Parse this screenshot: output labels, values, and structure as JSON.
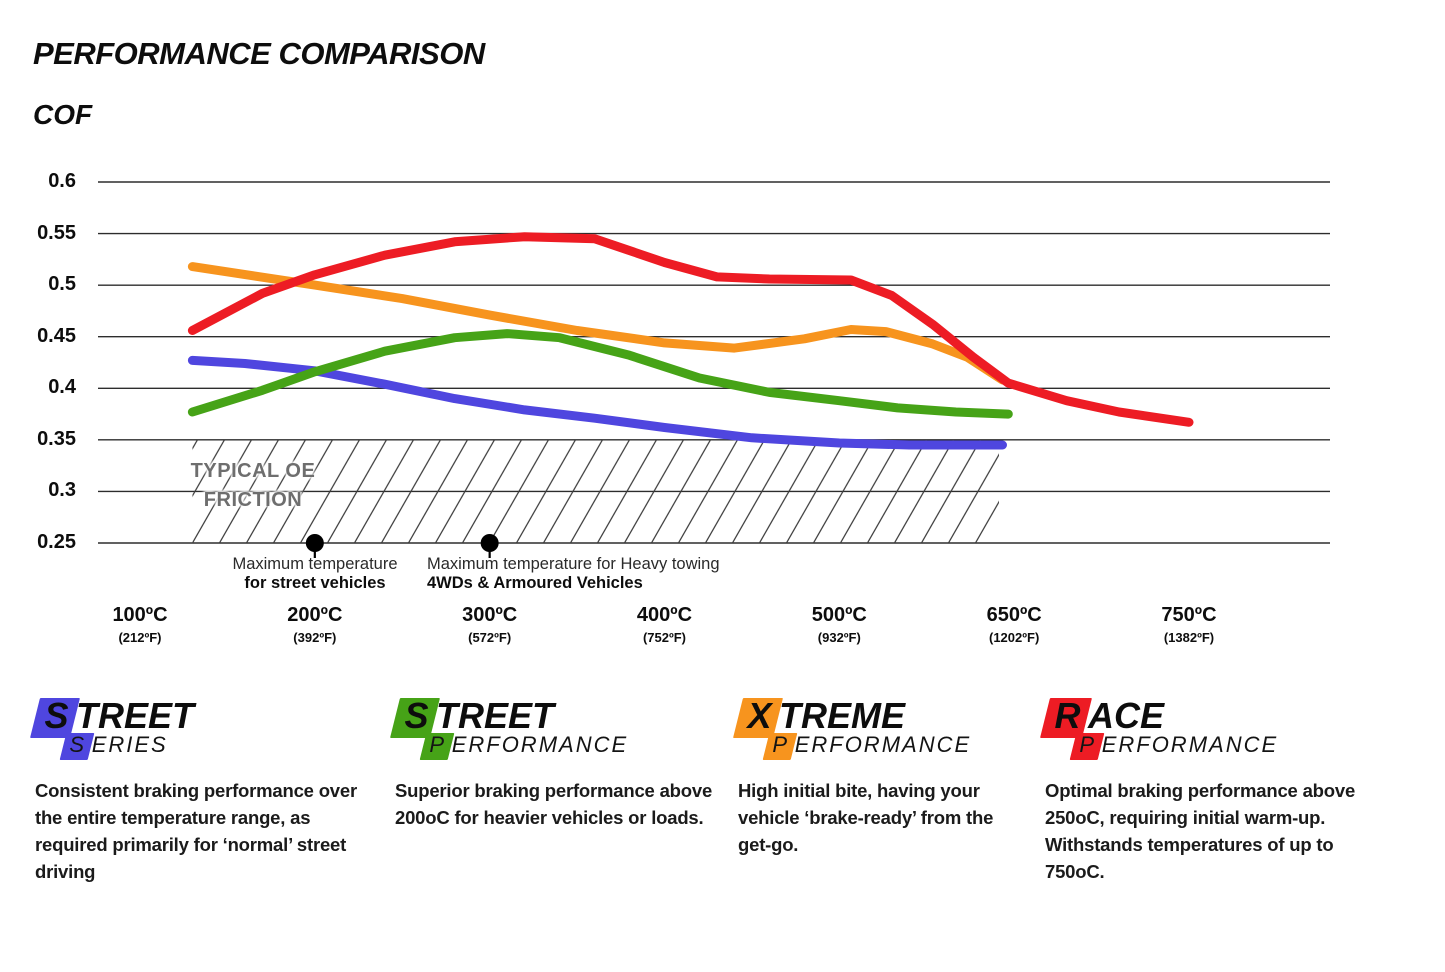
{
  "title": "PERFORMANCE COMPARISON",
  "y_axis_title": "COF",
  "colors": {
    "street_series_blue": "#4f46df",
    "street_performance_green": "#46a317",
    "xtreme_performance_orange": "#f7941e",
    "race_performance_red": "#ed1c24",
    "gridline": "#2d2d2d",
    "hatch_line": "#3b3b3b",
    "band_text": "#6e6e6e"
  },
  "chart_data": {
    "type": "line",
    "title": "PERFORMANCE COMPARISON",
    "ylabel": "COF",
    "ylim": [
      0.25,
      0.6
    ],
    "grid": "horizontal",
    "legend_position": "bottom",
    "y_ticks": [
      "0.6",
      "0.55",
      "0.5",
      "0.45",
      "0.4",
      "0.35",
      "0.3",
      "0.25"
    ],
    "x_ticks": [
      {
        "temp": 100,
        "label": "100ºC",
        "flabel": "(212ºF)"
      },
      {
        "temp": 200,
        "label": "200ºC",
        "flabel": "(392ºF)"
      },
      {
        "temp": 300,
        "label": "300ºC",
        "flabel": "(572ºF)"
      },
      {
        "temp": 400,
        "label": "400ºC",
        "flabel": "(752ºF)"
      },
      {
        "temp": 500,
        "label": "500ºC",
        "flabel": "(932ºF)"
      },
      {
        "temp": 650,
        "label": "650ºC",
        "flabel": "(1202ºF)"
      },
      {
        "temp": 750,
        "label": "750ºC",
        "flabel": "(1382ºF)"
      }
    ],
    "band": {
      "label_line1": "TYPICAL OE",
      "label_line2": "FRICTION",
      "cof_from": 0.25,
      "cof_to": 0.35,
      "temp_from": 130,
      "temp_to": 637
    },
    "annotations": [
      {
        "temp": 200,
        "cof": 0.25,
        "line1": "Maximum temperature",
        "line2": "for street vehicles"
      },
      {
        "temp": 300,
        "cof": 0.25,
        "line1": "Maximum temperature for Heavy towing",
        "line2": "4WDs & Armoured Vehicles"
      }
    ],
    "series": [
      {
        "name": "Street Series",
        "color": "#4f46df",
        "points": [
          [
            130,
            0.427
          ],
          [
            160,
            0.424
          ],
          [
            200,
            0.417
          ],
          [
            240,
            0.404
          ],
          [
            280,
            0.39
          ],
          [
            320,
            0.379
          ],
          [
            360,
            0.371
          ],
          [
            400,
            0.362
          ],
          [
            450,
            0.352
          ],
          [
            500,
            0.347
          ],
          [
            560,
            0.345
          ],
          [
            640,
            0.345
          ]
        ]
      },
      {
        "name": "Street Performance",
        "color": "#46a317",
        "points": [
          [
            130,
            0.377
          ],
          [
            170,
            0.398
          ],
          [
            200,
            0.416
          ],
          [
            240,
            0.436
          ],
          [
            280,
            0.449
          ],
          [
            310,
            0.453
          ],
          [
            340,
            0.449
          ],
          [
            380,
            0.432
          ],
          [
            420,
            0.41
          ],
          [
            460,
            0.396
          ],
          [
            500,
            0.388
          ],
          [
            550,
            0.381
          ],
          [
            600,
            0.377
          ],
          [
            645,
            0.375
          ]
        ]
      },
      {
        "name": "Xtreme Performance",
        "color": "#f7941e",
        "points": [
          [
            130,
            0.518
          ],
          [
            200,
            0.5
          ],
          [
            250,
            0.487
          ],
          [
            300,
            0.471
          ],
          [
            350,
            0.456
          ],
          [
            400,
            0.444
          ],
          [
            440,
            0.439
          ],
          [
            480,
            0.448
          ],
          [
            510,
            0.457
          ],
          [
            540,
            0.455
          ],
          [
            580,
            0.443
          ],
          [
            610,
            0.43
          ],
          [
            640,
            0.408
          ]
        ]
      },
      {
        "name": "Race Performance",
        "color": "#ed1c24",
        "points": [
          [
            130,
            0.456
          ],
          [
            170,
            0.492
          ],
          [
            200,
            0.51
          ],
          [
            240,
            0.529
          ],
          [
            280,
            0.542
          ],
          [
            320,
            0.547
          ],
          [
            360,
            0.545
          ],
          [
            400,
            0.522
          ],
          [
            430,
            0.508
          ],
          [
            460,
            0.506
          ],
          [
            510,
            0.505
          ],
          [
            545,
            0.49
          ],
          [
            580,
            0.462
          ],
          [
            615,
            0.43
          ],
          [
            645,
            0.405
          ],
          [
            680,
            0.388
          ],
          [
            710,
            0.377
          ],
          [
            750,
            0.367
          ]
        ]
      }
    ]
  },
  "legend": {
    "items": [
      {
        "l1_first": "S",
        "l1_rest": "TREET",
        "l2_first": "S",
        "l2_rest": "ERIES",
        "color": "#4f46df",
        "desc": "Consistent braking performance over the entire temperature range, as required primarily for ‘normal’ street driving"
      },
      {
        "l1_first": "S",
        "l1_rest": "TREET",
        "l2_first": "P",
        "l2_rest": "ERFORMANCE",
        "color": "#46a317",
        "desc": "Superior braking performance above 200oC for heavier vehicles or loads."
      },
      {
        "l1_first": "X",
        "l1_rest": "TREME",
        "l2_first": "P",
        "l2_rest": "ERFORMANCE",
        "color": "#f7941e",
        "desc": "High initial bite, having your vehicle ‘brake-ready’ from the get-go."
      },
      {
        "l1_first": "R",
        "l1_rest": "ACE",
        "l2_first": "P",
        "l2_rest": "ERFORMANCE",
        "color": "#ed1c24",
        "desc": "Optimal braking performance above 250oC, requiring initial warm-up. Withstands temperatures of up to 750oC."
      }
    ]
  }
}
